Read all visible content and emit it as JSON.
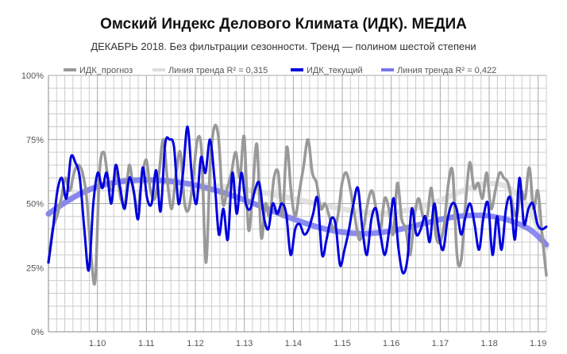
{
  "chart_data": {
    "type": "line",
    "title": "Омский Индекс Делового Климата (ИДК). МЕДИА",
    "subtitle": "ДЕКАБРЬ 2018. Без фильтрации сезонности. Тренд — полином шестой степени",
    "xlabel": "",
    "ylabel": "",
    "x_ticks": [
      "1.10",
      "1.11",
      "1.12",
      "1.13",
      "1.14",
      "1.15",
      "1.16",
      "1.17",
      "1.18",
      "1.19"
    ],
    "x_tick_positions": [
      12,
      24,
      36,
      48,
      60,
      72,
      84,
      96,
      108,
      120
    ],
    "xlim": [
      0,
      122
    ],
    "y_ticks": [
      "0%",
      "25%",
      "50%",
      "75%",
      "100%"
    ],
    "y_tick_values": [
      0,
      25,
      50,
      75,
      100
    ],
    "ylim": [
      0,
      100
    ],
    "grid": true,
    "legend_position": "top",
    "series": [
      {
        "name": "ИДК_прогноз",
        "color": "#999999",
        "style": "line",
        "values": [
          27,
          40,
          45,
          52,
          60,
          55,
          62,
          65,
          62,
          52,
          30,
          20,
          62,
          70,
          60,
          55,
          62,
          52,
          50,
          65,
          55,
          48,
          60,
          67,
          55,
          52,
          62,
          75,
          58,
          48,
          62,
          70,
          50,
          48,
          60,
          75,
          70,
          27,
          65,
          80,
          75,
          50,
          56,
          62,
          70,
          60,
          76,
          40,
          55,
          73,
          37,
          50,
          45,
          60,
          62,
          45,
          72,
          55,
          45,
          55,
          65,
          75,
          62,
          58,
          48,
          50,
          45,
          40,
          45,
          58,
          62,
          55,
          45,
          36,
          40,
          50,
          55,
          48,
          40,
          52,
          48,
          38,
          58,
          44,
          40,
          30,
          45,
          52,
          45,
          45,
          56,
          38,
          35,
          42,
          58,
          62,
          30,
          28,
          50,
          66,
          56,
          58,
          52,
          62,
          48,
          55,
          62,
          60,
          58,
          50,
          45,
          55,
          52,
          64,
          48,
          55,
          38,
          22
        ]
      },
      {
        "name": "Линия тренда R² = 0,315",
        "color": "#dddddd",
        "style": "trend",
        "values": [
          46,
          50.5,
          53.9,
          56.3,
          57.7,
          58.5,
          58.7,
          58.6,
          58.3,
          57.9,
          57.4,
          56.9,
          56.3,
          55.5,
          54.5,
          53.4,
          52.2,
          50.9,
          49.6,
          48.4,
          47.3,
          46.6,
          46.3,
          46.7,
          47.7,
          49.3,
          51.4,
          53.9,
          56.2,
          57.8,
          57.4,
          54.1,
          46.5,
          33
        ]
      },
      {
        "name": "ИДК_текущий",
        "color": "#0000dd",
        "style": "line",
        "values": [
          27,
          40,
          55,
          60,
          52,
          68,
          66,
          60,
          40,
          24,
          50,
          62,
          56,
          62,
          50,
          65,
          56,
          48,
          60,
          55,
          44,
          64,
          52,
          50,
          63,
          47,
          73,
          75,
          72,
          50,
          62,
          80,
          60,
          50,
          68,
          62,
          75,
          60,
          38,
          48,
          36,
          62,
          46,
          62,
          50,
          48,
          55,
          58,
          45,
          40,
          50,
          46,
          50,
          46,
          30,
          40,
          42,
          38,
          40,
          46,
          52,
          30,
          36,
          44,
          42,
          26,
          32,
          40,
          50,
          56,
          40,
          30,
          44,
          48,
          38,
          30,
          40,
          52,
          33,
          23,
          28,
          48,
          38,
          40,
          45,
          35,
          50,
          38,
          32,
          44,
          50,
          48,
          38,
          45,
          50,
          42,
          32,
          45,
          50,
          30,
          45,
          32,
          48,
          52,
          36,
          60,
          42,
          48,
          50,
          42,
          40,
          41
        ]
      },
      {
        "name": "Линия тренда R² = 0,422",
        "color": "#7777ee",
        "style": "trend",
        "values": [
          46,
          50,
          53.5,
          56.1,
          57.8,
          58.8,
          59.2,
          59.2,
          58.8,
          58,
          56.8,
          55.3,
          53.5,
          51.4,
          49.1,
          46.8,
          44.5,
          42.4,
          40.6,
          39.3,
          38.5,
          38.3,
          38.7,
          39.6,
          40.9,
          42.4,
          43.8,
          44.9,
          45.4,
          45.3,
          44.3,
          42.5,
          39.5,
          34
        ]
      }
    ]
  }
}
